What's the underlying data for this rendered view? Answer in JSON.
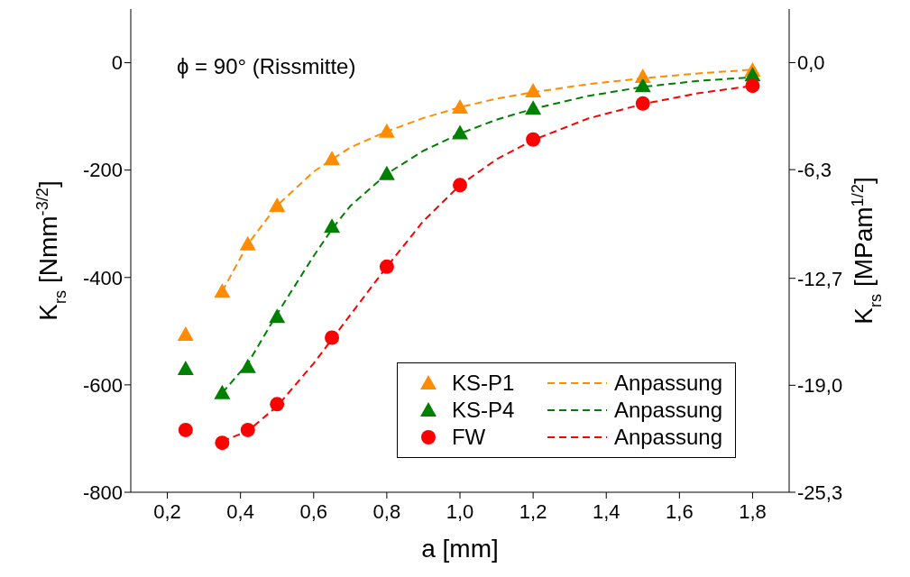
{
  "chart_data": {
    "type": "scatter",
    "xlabel": "a [mm]",
    "ylabel": "K$_{rs}$ [Nmm$^{-3/2}$]",
    "y2label": "K$_{rs}$ [MPam$^{1/2}$]",
    "annotations": [
      "ϕ = 90° (Rissmitte)"
    ],
    "xlim": [
      0.1,
      1.9
    ],
    "xticks": [
      {
        "value": 0.2,
        "label": "0,2"
      },
      {
        "value": 0.4,
        "label": "0,4"
      },
      {
        "value": 0.6,
        "label": "0,6"
      },
      {
        "value": 0.8,
        "label": "0,8"
      },
      {
        "value": 1.0,
        "label": "1,0"
      },
      {
        "value": 1.2,
        "label": "1,2"
      },
      {
        "value": 1.4,
        "label": "1,4"
      },
      {
        "value": 1.6,
        "label": "1,6"
      },
      {
        "value": 1.8,
        "label": "1,8"
      }
    ],
    "ylim": [
      -800,
      100
    ],
    "yticks": [
      -800,
      -600,
      -400,
      -200,
      0
    ],
    "y2lim": [
      -25.3,
      3.16
    ],
    "y2ticks": [
      {
        "value": -25.3,
        "label": "-25,3"
      },
      {
        "value": -19.0,
        "label": "-19,0"
      },
      {
        "value": -12.7,
        "label": "-12,7"
      },
      {
        "value": -6.3,
        "label": "-6,3"
      },
      {
        "value": 0,
        "label": "0,0"
      }
    ],
    "grid": false,
    "legend": "bottom right",
    "series": [
      {
        "name": "KS-P1",
        "type": "scatter",
        "marker": "triangle",
        "color": "#ff8c00",
        "x": [
          0.25,
          0.35,
          0.42,
          0.5,
          0.65,
          0.8,
          1.0,
          1.2,
          1.5,
          1.8
        ],
        "values": [
          -506,
          -426,
          -338,
          -266,
          -179,
          -128,
          -83,
          -53,
          -26,
          -14
        ]
      },
      {
        "name": "KS-P4",
        "type": "scatter",
        "marker": "triangle",
        "color": "#008000",
        "x": [
          0.25,
          0.35,
          0.42,
          0.5,
          0.65,
          0.8,
          1.0,
          1.2,
          1.5,
          1.8
        ],
        "values": [
          -570,
          -615,
          -566,
          -473,
          -305,
          -207,
          -131,
          -85,
          -43,
          -23
        ]
      },
      {
        "name": "FW",
        "type": "scatter",
        "marker": "circle",
        "color": "#ff0000",
        "x": [
          0.25,
          0.35,
          0.42,
          0.5,
          0.65,
          0.8,
          1.0,
          1.2,
          1.5,
          1.8
        ],
        "values": [
          -684,
          -708,
          -684,
          -636,
          -512,
          -380,
          -228,
          -143,
          -76,
          -43
        ]
      },
      {
        "name": "Anpassung",
        "type": "line",
        "marker": "none",
        "line_style": "dashed",
        "color": "#ff8c00",
        "x": [
          0.35,
          0.42,
          0.5,
          0.6,
          0.65,
          0.7,
          0.8,
          0.9,
          1.0,
          1.1,
          1.2,
          1.35,
          1.5,
          1.65,
          1.8
        ],
        "values": [
          -426,
          -338,
          -266,
          -203,
          -180,
          -158,
          -128,
          -103,
          -83,
          -67,
          -55,
          -40,
          -29,
          -20,
          -13
        ]
      },
      {
        "name": "Anpassung",
        "type": "line",
        "marker": "none",
        "line_style": "dashed",
        "color": "#008000",
        "x": [
          0.35,
          0.42,
          0.5,
          0.6,
          0.65,
          0.7,
          0.8,
          0.9,
          1.0,
          1.1,
          1.2,
          1.35,
          1.5,
          1.65,
          1.8
        ],
        "values": [
          -615,
          -560,
          -468,
          -360,
          -310,
          -267,
          -207,
          -164,
          -132,
          -106,
          -86,
          -62,
          -45,
          -34,
          -27
        ]
      },
      {
        "name": "Anpassung",
        "type": "line",
        "marker": "none",
        "line_style": "dashed",
        "color": "#ff0000",
        "x": [
          0.35,
          0.42,
          0.5,
          0.6,
          0.65,
          0.7,
          0.8,
          0.9,
          1.0,
          1.1,
          1.2,
          1.35,
          1.5,
          1.65,
          1.8
        ],
        "values": [
          -705,
          -686,
          -640,
          -560,
          -515,
          -470,
          -380,
          -295,
          -228,
          -180,
          -144,
          -104,
          -77,
          -57,
          -43
        ]
      }
    ]
  }
}
